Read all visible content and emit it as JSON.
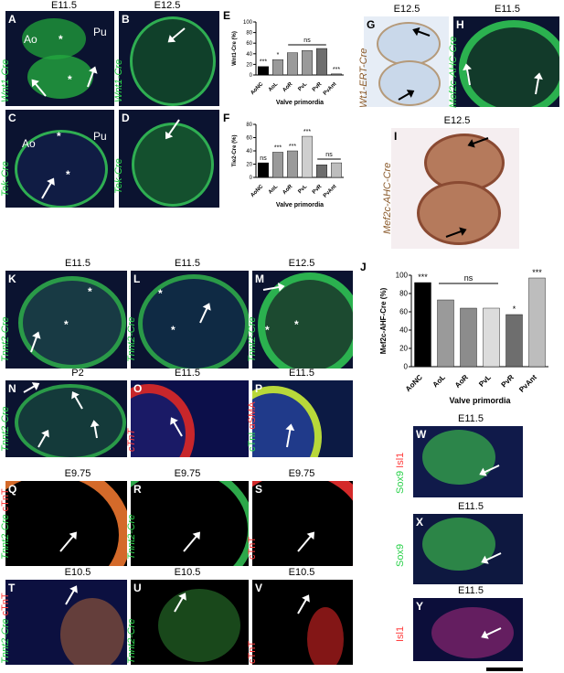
{
  "panels": {
    "A": {
      "letter": "A",
      "stage": "E11.5",
      "label": "Wnt1-Cre",
      "ao": "Ao",
      "pu": "Pu",
      "star": "*"
    },
    "B": {
      "letter": "B",
      "stage": "E12.5",
      "label": "Wnt1-Cre"
    },
    "C": {
      "letter": "C",
      "label": "Tek-Cre",
      "ao": "Ao",
      "pu": "Pu",
      "star": "*"
    },
    "D": {
      "letter": "D",
      "label": "Tek-Cre"
    },
    "E": {
      "letter": "E"
    },
    "F": {
      "letter": "F"
    },
    "G": {
      "letter": "G",
      "stage": "E12.5",
      "label": "Wt1-ERT-Cre"
    },
    "H": {
      "letter": "H",
      "stage": "E11.5",
      "label": "Mef2c-AHC-Cre"
    },
    "I": {
      "letter": "I",
      "stage": "E12.5",
      "label": "Mef2c-AHC-Cre"
    },
    "J": {
      "letter": "J"
    },
    "K": {
      "letter": "K",
      "stage": "E11.5",
      "label": "Tnnt2-Cre",
      "star": "*"
    },
    "L": {
      "letter": "L",
      "stage": "E11.5",
      "label": "Tnnt2-Cre",
      "star": "*"
    },
    "M": {
      "letter": "M",
      "stage": "E12.5",
      "label": "Tnnt2-Cre",
      "star": "*"
    },
    "N": {
      "letter": "N",
      "stage": "P2",
      "label": "Tnnt2-Cre"
    },
    "O": {
      "letter": "O",
      "stage": "E11.5",
      "label": "cTnT"
    },
    "P": {
      "letter": "P",
      "stage": "E11.5",
      "label_a": "cTnI",
      "label_b": "αSMA"
    },
    "Q": {
      "letter": "Q",
      "stage": "E9.75",
      "label_a": "Tnnt2-Cre",
      "label_b": "cTnT"
    },
    "R": {
      "letter": "R",
      "stage": "E9.75",
      "label": "Tnnt2-Cre"
    },
    "S": {
      "letter": "S",
      "stage": "E9.75",
      "label": "cTnT"
    },
    "T": {
      "letter": "T",
      "stage": "E10.5",
      "label_a": "Tnnt2-Cre",
      "label_b": "cTnT"
    },
    "U": {
      "letter": "U",
      "stage": "E10.5",
      "label": "Tnnt2-Cre"
    },
    "V": {
      "letter": "V",
      "stage": "E10.5",
      "label": "cTnT"
    },
    "W": {
      "letter": "W",
      "stage": "E11.5",
      "label_a": "Sox9",
      "label_b": "Isl1"
    },
    "X": {
      "letter": "X",
      "stage": "E11.5",
      "label": "Sox9"
    },
    "Y": {
      "letter": "Y",
      "stage": "E11.5",
      "label": "Isl1"
    }
  },
  "chart_data": [
    {
      "id": "E",
      "type": "bar",
      "ylabel": "Wnt1-Cre (%)",
      "xlabel": "Valve primordia",
      "categories": [
        "AoNC",
        "AoL",
        "AoR",
        "PvL",
        "PvR",
        "PvAnt"
      ],
      "values": [
        16,
        29,
        42,
        46,
        50,
        2
      ],
      "ylim": [
        0,
        100
      ],
      "yticks": [
        0,
        20,
        40,
        60,
        80,
        100
      ],
      "colors": [
        "#000000",
        "#9a9a9a",
        "#9a9a9a",
        "#9a9a9a",
        "#6e6e6e",
        "#6e6e6e"
      ],
      "sig": [
        "***",
        "*",
        "",
        "",
        "",
        "***"
      ],
      "ns": {
        "label": "ns",
        "from": 2,
        "to": 4
      }
    },
    {
      "id": "F",
      "type": "bar",
      "ylabel": "Tie2-Cre (%)",
      "xlabel": "Valve primordia",
      "categories": [
        "AoNC",
        "AoL",
        "AoR",
        "PvL",
        "PvR",
        "PvAnt"
      ],
      "values": [
        22,
        38,
        40,
        62,
        19,
        22
      ],
      "ylim": [
        0,
        80
      ],
      "yticks": [
        0,
        20,
        40,
        60,
        80
      ],
      "colors": [
        "#000000",
        "#9a9a9a",
        "#9a9a9a",
        "#cfcfcf",
        "#6e6e6e",
        "#bdbdbd"
      ],
      "sig": [
        "ns",
        "***",
        "***",
        "***",
        "",
        ""
      ],
      "ns": {
        "label": "ns",
        "from": 4,
        "to": 5
      }
    },
    {
      "id": "J",
      "type": "bar",
      "ylabel": "Mef2c-AHF-Cre (%)",
      "xlabel": "Valve primordia",
      "categories": [
        "AoNC",
        "AoL",
        "AoR",
        "PvL",
        "PvR",
        "PvAnt"
      ],
      "values": [
        92,
        73,
        64,
        64,
        57,
        97
      ],
      "ylim": [
        0,
        100
      ],
      "yticks": [
        0,
        20,
        40,
        60,
        80,
        100
      ],
      "colors": [
        "#000000",
        "#9a9a9a",
        "#8c8c8c",
        "#dcdcdc",
        "#6e6e6e",
        "#bdbdbd"
      ],
      "sig": [
        "***",
        "",
        "",
        "",
        "*",
        "***"
      ],
      "ns": {
        "label": "ns",
        "from": 1,
        "to": 3
      }
    }
  ]
}
